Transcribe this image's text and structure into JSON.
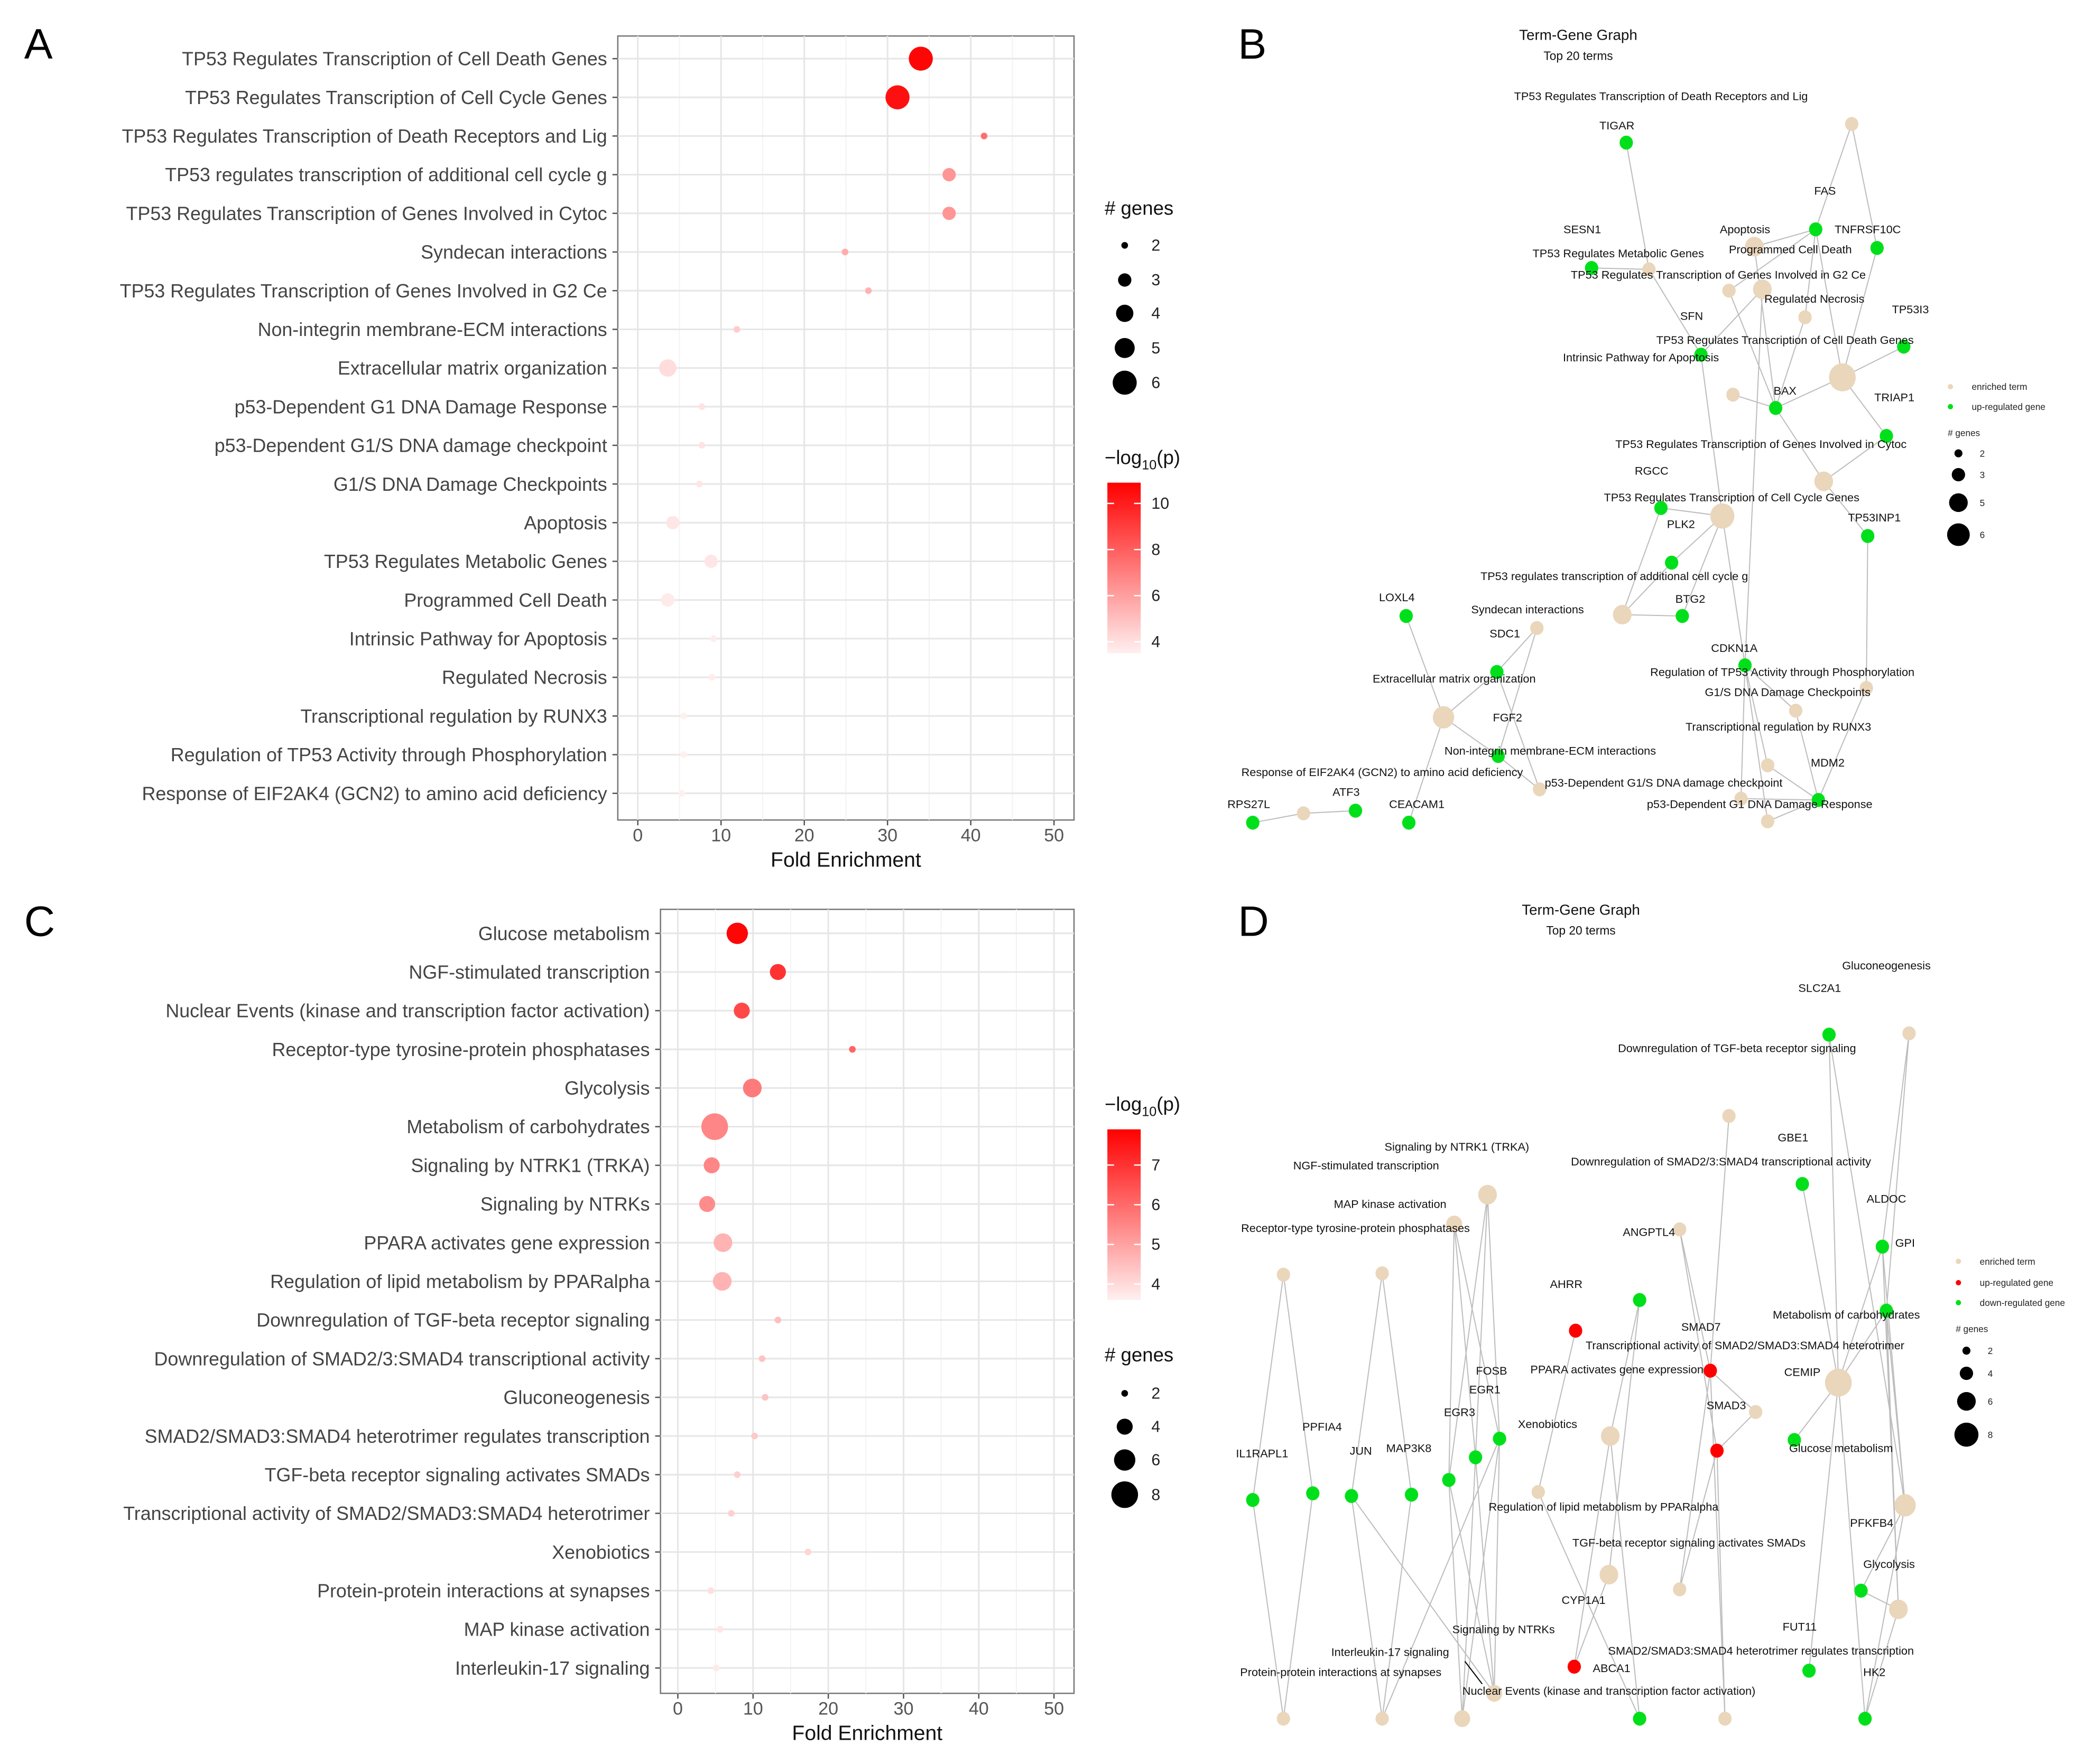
{
  "panels": {
    "a": "A",
    "b": "B",
    "c": "C",
    "d": "D"
  },
  "colors": {
    "low": "#fff0f0",
    "high": "#ff0000",
    "term": "#ead6bb",
    "up_gene": "#ff0000",
    "down_gene": "#00e01a",
    "gene_b": "#00e01a",
    "edge": "#bdbdbd",
    "grid": "#ebebeb"
  },
  "chart_data": [
    {
      "panel": "A",
      "type": "scatter",
      "xlabel": "Fold Enrichment",
      "ylabel": "",
      "xlim": [
        -2.5,
        52.5
      ],
      "xticks": [
        0,
        10,
        20,
        30,
        40,
        50
      ],
      "grid": true,
      "categories": [
        "TP53 Regulates Transcription of Cell Death Genes",
        "TP53 Regulates Transcription of Cell Cycle Genes",
        "TP53 Regulates Transcription of Death Receptors and Lig",
        "TP53 regulates transcription of additional cell cycle g",
        "TP53 Regulates Transcription of Genes Involved in Cytoc",
        "Syndecan interactions",
        "TP53 Regulates Transcription of Genes Involved in G2 Ce",
        "Non-integrin membrane-ECM interactions",
        "Extracellular matrix organization",
        "p53-Dependent G1 DNA Damage Response",
        "p53-Dependent G1/S DNA damage checkpoint",
        "G1/S DNA Damage Checkpoints",
        "Apoptosis",
        "TP53 Regulates Metabolic Genes",
        "Programmed Cell Death",
        "Intrinsic Pathway for Apoptosis",
        "Regulated Necrosis",
        "Transcriptional regulation by RUNX3",
        "Regulation of TP53 Activity through Phosphorylation",
        "Response of EIF2AK4 (GCN2) to amino acid deficiency"
      ],
      "fold_enrichment": [
        34.0,
        31.2,
        41.6,
        37.4,
        37.4,
        24.9,
        27.7,
        11.9,
        3.6,
        7.7,
        7.7,
        7.4,
        4.2,
        8.8,
        3.6,
        9.1,
        8.9,
        5.5,
        5.5,
        5.3
      ],
      "n_genes": [
        6,
        6,
        2,
        3,
        3,
        2,
        2,
        2,
        4,
        2,
        2,
        2,
        3,
        3,
        3,
        2,
        2,
        2,
        2,
        2
      ],
      "neg_log10_p": [
        10.7,
        10.4,
        7.5,
        6.3,
        6.3,
        5.6,
        5.4,
        4.6,
        4.1,
        3.9,
        3.9,
        3.8,
        3.8,
        3.8,
        3.7,
        3.6,
        3.6,
        3.5,
        3.5,
        3.5
      ],
      "size_legend": {
        "title": "# genes",
        "values": [
          2,
          3,
          4,
          5,
          6
        ]
      },
      "color_legend": {
        "title_prefix": "−log",
        "title_sub": "10",
        "title_suffix": "(p)",
        "ticks": [
          10,
          8,
          6,
          4
        ],
        "range": [
          3.5,
          10.9
        ]
      }
    },
    {
      "panel": "C",
      "type": "scatter",
      "xlabel": "Fold Enrichment",
      "ylabel": "",
      "xlim": [
        -2.5,
        52.5
      ],
      "xticks": [
        0,
        10,
        20,
        30,
        40,
        50
      ],
      "grid": true,
      "categories": [
        "Glucose metabolism",
        "NGF-stimulated transcription",
        "Nuclear Events (kinase and transcription factor activation)",
        "Receptor-type tyrosine-protein phosphatases",
        "Glycolysis",
        "Metabolism of carbohydrates",
        "Signaling by NTRK1 (TRKA)",
        "Signaling by NTRKs",
        "PPARA activates gene expression",
        "Regulation of lipid metabolism by PPARalpha",
        "Downregulation of TGF-beta receptor signaling",
        "Downregulation of SMAD2/3:SMAD4 transcriptional activity",
        "Gluconeogenesis",
        "SMAD2/SMAD3:SMAD4 heterotrimer regulates transcription",
        "TGF-beta receptor signaling activates SMADs",
        "Transcriptional activity of SMAD2/SMAD3:SMAD4 heterotrimer",
        "Xenobiotics",
        "Protein-protein interactions at synapses",
        "MAP kinase activation",
        "Interleukin-17 signaling"
      ],
      "fold_enrichment": [
        7.9,
        13.3,
        8.5,
        23.2,
        9.9,
        4.9,
        4.5,
        3.9,
        6.0,
        5.9,
        13.3,
        11.2,
        11.6,
        10.2,
        7.9,
        7.1,
        17.3,
        4.4,
        5.6,
        5.1
      ],
      "n_genes": [
        6,
        4,
        4,
        2,
        5,
        8,
        4,
        4,
        5,
        5,
        2,
        2,
        2,
        2,
        2,
        2,
        2,
        2,
        2,
        2
      ],
      "neg_log10_p": [
        7.8,
        7.0,
        6.6,
        6.1,
        5.7,
        5.5,
        5.5,
        5.4,
        4.7,
        4.7,
        4.5,
        4.4,
        4.4,
        4.3,
        4.2,
        4.2,
        4.1,
        3.9,
        3.8,
        3.7
      ],
      "size_legend": {
        "title": "# genes",
        "values": [
          2,
          4,
          6,
          8
        ]
      },
      "color_legend": {
        "title_prefix": "−log",
        "title_sub": "10",
        "title_suffix": "(p)",
        "ticks": [
          7,
          6,
          5,
          4
        ],
        "range": [
          3.6,
          7.9
        ]
      }
    }
  ],
  "network_b": {
    "title": "Term-Gene Graph",
    "subtitle": "Top 20 terms",
    "legend": {
      "term": "enriched term",
      "up": "up-regulated gene",
      "size_title": "# genes",
      "sizes": [
        2,
        3,
        5,
        6
      ]
    },
    "nodes": [
      {
        "label": "TP53 Regulates Transcription of Death Receptors and Lig",
        "type": "term"
      },
      {
        "label": "Apoptosis",
        "type": "term"
      },
      {
        "label": "TP53 Regulates Metabolic Genes",
        "type": "term"
      },
      {
        "label": "TP53 Regulates Transcription of Genes Involved in G2 Ce",
        "type": "term"
      },
      {
        "label": "Programmed Cell Death",
        "type": "term"
      },
      {
        "label": "Regulated Necrosis",
        "type": "term"
      },
      {
        "label": "TP53 Regulates Transcription of Cell Death Genes",
        "type": "term"
      },
      {
        "label": "Intrinsic Pathway for Apoptosis",
        "type": "term"
      },
      {
        "label": "TP53 Regulates Transcription of Genes Involved in Cytoc",
        "type": "term"
      },
      {
        "label": "TP53 Regulates Transcription of Cell Cycle Genes",
        "type": "term"
      },
      {
        "label": "TP53 regulates transcription of additional cell cycle g",
        "type": "term"
      },
      {
        "label": "Syndecan interactions",
        "type": "term"
      },
      {
        "label": "Extracellular matrix organization",
        "type": "term"
      },
      {
        "label": "Regulation of TP53 Activity through Phosphorylation",
        "type": "term"
      },
      {
        "label": "G1/S DNA Damage Checkpoints",
        "type": "term"
      },
      {
        "label": "Transcriptional regulation by RUNX3",
        "type": "term"
      },
      {
        "label": "Response of EIF2AK4 (GCN2) to amino acid deficiency",
        "type": "term"
      },
      {
        "label": "Non-integrin membrane-ECM interactions",
        "type": "term"
      },
      {
        "label": "p53-Dependent G1/S DNA damage checkpoint",
        "type": "term"
      },
      {
        "label": "p53-Dependent G1 DNA Damage Response",
        "type": "term"
      },
      {
        "label": "TIGAR",
        "type": "up"
      },
      {
        "label": "FAS",
        "type": "up"
      },
      {
        "label": "SESN1",
        "type": "up"
      },
      {
        "label": "TNFRSF10C",
        "type": "up"
      },
      {
        "label": "TP53I3",
        "type": "up"
      },
      {
        "label": "SFN",
        "type": "up"
      },
      {
        "label": "BAX",
        "type": "up"
      },
      {
        "label": "TRIAP1",
        "type": "up"
      },
      {
        "label": "RGCC",
        "type": "up"
      },
      {
        "label": "PLK2",
        "type": "up"
      },
      {
        "label": "TP53INP1",
        "type": "up"
      },
      {
        "label": "LOXL4",
        "type": "up"
      },
      {
        "label": "BTG2",
        "type": "up"
      },
      {
        "label": "SDC1",
        "type": "up"
      },
      {
        "label": "CDKN1A",
        "type": "up"
      },
      {
        "label": "FGF2",
        "type": "up"
      },
      {
        "label": "MDM2",
        "type": "up"
      },
      {
        "label": "ATF3",
        "type": "up"
      },
      {
        "label": "RPS27L",
        "type": "up"
      },
      {
        "label": "CEACAM1",
        "type": "up"
      }
    ],
    "edges": [
      [
        20,
        2
      ],
      [
        22,
        2
      ],
      [
        21,
        0
      ],
      [
        23,
        0
      ],
      [
        21,
        1
      ],
      [
        21,
        4
      ],
      [
        21,
        5
      ],
      [
        21,
        6
      ],
      [
        23,
        6
      ],
      [
        25,
        3
      ],
      [
        25,
        9
      ],
      [
        25,
        2
      ],
      [
        26,
        1
      ],
      [
        26,
        4
      ],
      [
        26,
        7
      ],
      [
        26,
        6
      ],
      [
        26,
        5
      ],
      [
        24,
        6
      ],
      [
        27,
        6
      ],
      [
        27,
        8
      ],
      [
        26,
        8
      ],
      [
        28,
        9
      ],
      [
        28,
        10
      ],
      [
        29,
        9
      ],
      [
        29,
        10
      ],
      [
        32,
        10
      ],
      [
        32,
        9
      ],
      [
        34,
        9
      ],
      [
        34,
        3
      ],
      [
        34,
        14
      ],
      [
        34,
        18
      ],
      [
        34,
        19
      ],
      [
        34,
        15
      ],
      [
        30,
        13
      ],
      [
        30,
        8
      ],
      [
        36,
        13
      ],
      [
        36,
        14
      ],
      [
        36,
        15
      ],
      [
        36,
        18
      ],
      [
        36,
        19
      ],
      [
        31,
        12
      ],
      [
        33,
        12
      ],
      [
        33,
        11
      ],
      [
        35,
        12
      ],
      [
        35,
        11
      ],
      [
        35,
        17
      ],
      [
        39,
        12
      ],
      [
        37,
        16
      ],
      [
        38,
        16
      ],
      [
        33,
        17
      ]
    ]
  },
  "network_d": {
    "title": "Term-Gene Graph",
    "subtitle": "Top 20 terms",
    "legend": {
      "term": "enriched term",
      "up": "up-regulated gene",
      "down": "down-regulated gene",
      "size_title": "# genes",
      "sizes": [
        2,
        4,
        6,
        8
      ]
    },
    "nodes": [
      {
        "label": "Glucose metabolism",
        "type": "term"
      },
      {
        "label": "NGF-stimulated transcription",
        "type": "term"
      },
      {
        "label": "Nuclear Events (kinase and transcription factor activation)",
        "type": "term"
      },
      {
        "label": "Receptor-type tyrosine-protein phosphatases",
        "type": "term"
      },
      {
        "label": "Glycolysis",
        "type": "term"
      },
      {
        "label": "Metabolism of carbohydrates",
        "type": "term"
      },
      {
        "label": "Signaling by NTRK1 (TRKA)",
        "type": "term"
      },
      {
        "label": "Signaling by NTRKs",
        "type": "term"
      },
      {
        "label": "PPARA activates gene expression",
        "type": "term"
      },
      {
        "label": "Regulation of lipid metabolism by PPARalpha",
        "type": "term"
      },
      {
        "label": "Downregulation of TGF-beta receptor signaling",
        "type": "term"
      },
      {
        "label": "Downregulation of SMAD2/3:SMAD4 transcriptional activity",
        "type": "term"
      },
      {
        "label": "Gluconeogenesis",
        "type": "term"
      },
      {
        "label": "SMAD2/SMAD3:SMAD4 heterotrimer regulates transcription",
        "type": "term"
      },
      {
        "label": "TGF-beta receptor signaling activates SMADs",
        "type": "term"
      },
      {
        "label": "Transcriptional activity of SMAD2/SMAD3:SMAD4 heterotrimer",
        "type": "term"
      },
      {
        "label": "Xenobiotics",
        "type": "term"
      },
      {
        "label": "Protein-protein interactions at synapses",
        "type": "term"
      },
      {
        "label": "MAP kinase activation",
        "type": "term"
      },
      {
        "label": "Interleukin-17 signaling",
        "type": "term"
      },
      {
        "label": "SLC2A1",
        "type": "down"
      },
      {
        "label": "GBE1",
        "type": "down"
      },
      {
        "label": "ALDOC",
        "type": "down"
      },
      {
        "label": "GPI",
        "type": "down"
      },
      {
        "label": "ANGPTL4",
        "type": "down"
      },
      {
        "label": "AHRR",
        "type": "up"
      },
      {
        "label": "SMAD7",
        "type": "up"
      },
      {
        "label": "FOSB",
        "type": "down"
      },
      {
        "label": "CEMIP",
        "type": "down"
      },
      {
        "label": "EGR1",
        "type": "down"
      },
      {
        "label": "SMAD3",
        "type": "up"
      },
      {
        "label": "EGR3",
        "type": "down"
      },
      {
        "label": "PPFIA4",
        "type": "down"
      },
      {
        "label": "IL1RAPL1",
        "type": "down"
      },
      {
        "label": "JUN",
        "type": "down"
      },
      {
        "label": "MAP3K8",
        "type": "down"
      },
      {
        "label": "PFKFB4",
        "type": "down"
      },
      {
        "label": "CYP1A1",
        "type": "down"
      },
      {
        "label": "FUT11",
        "type": "down"
      },
      {
        "label": "ABCA1",
        "type": "up"
      },
      {
        "label": "HK2",
        "type": "down"
      }
    ],
    "edges": [
      [
        20,
        5
      ],
      [
        20,
        0
      ],
      [
        12,
        23
      ],
      [
        12,
        22
      ],
      [
        21,
        5
      ],
      [
        23,
        5
      ],
      [
        23,
        0
      ],
      [
        23,
        4
      ],
      [
        22,
        4
      ],
      [
        22,
        0
      ],
      [
        22,
        5
      ],
      [
        28,
        5
      ],
      [
        36,
        0
      ],
      [
        36,
        4
      ],
      [
        38,
        5
      ],
      [
        40,
        4
      ],
      [
        40,
        5
      ],
      [
        40,
        0
      ],
      [
        26,
        10
      ],
      [
        26,
        11
      ],
      [
        26,
        15
      ],
      [
        26,
        14
      ],
      [
        26,
        13
      ],
      [
        30,
        15
      ],
      [
        30,
        14
      ],
      [
        30,
        13
      ],
      [
        30,
        11
      ],
      [
        24,
        8
      ],
      [
        24,
        9
      ],
      [
        25,
        16
      ],
      [
        39,
        8
      ],
      [
        39,
        9
      ],
      [
        37,
        16
      ],
      [
        37,
        8
      ],
      [
        27,
        1
      ],
      [
        27,
        6
      ],
      [
        27,
        7
      ],
      [
        27,
        2
      ],
      [
        27,
        19
      ],
      [
        29,
        1
      ],
      [
        29,
        6
      ],
      [
        29,
        7
      ],
      [
        29,
        2
      ],
      [
        31,
        1
      ],
      [
        31,
        6
      ],
      [
        31,
        7
      ],
      [
        31,
        2
      ],
      [
        33,
        3
      ],
      [
        33,
        17
      ],
      [
        32,
        3
      ],
      [
        32,
        17
      ],
      [
        34,
        18
      ],
      [
        34,
        19
      ],
      [
        35,
        18
      ],
      [
        35,
        19
      ],
      [
        34,
        2
      ]
    ]
  }
}
